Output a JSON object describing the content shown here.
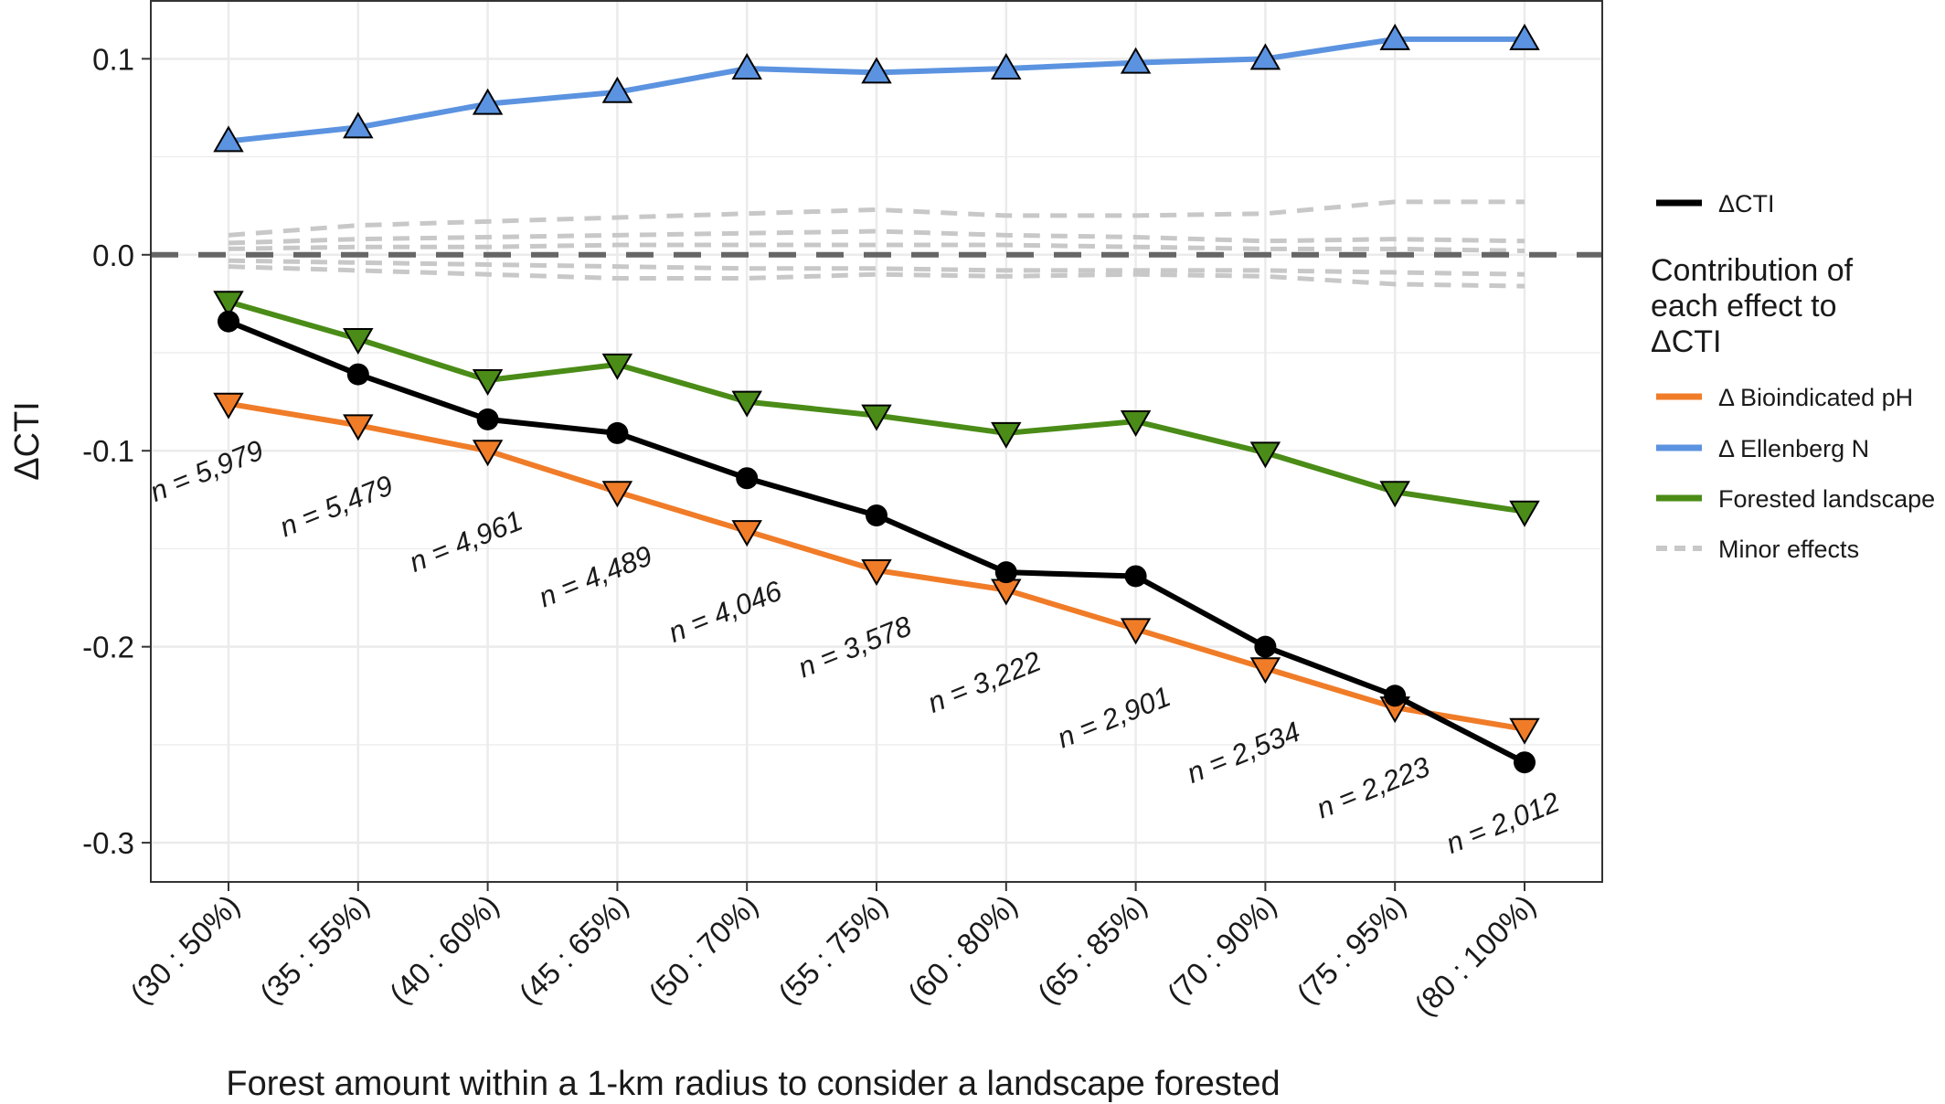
{
  "chart_data": {
    "type": "line",
    "xlabel": "Forest amount within a 1-km radius to consider a landscape forested",
    "ylabel": "ΔCTI",
    "ylim": [
      -0.32,
      0.13
    ],
    "yticks": [
      -0.3,
      -0.2,
      -0.1,
      0.0,
      0.1
    ],
    "ytick_labels": [
      "-0.3",
      "-0.2",
      "-0.1",
      "0.0",
      "0.1"
    ],
    "grid": true,
    "legend_position": "right",
    "categories": [
      "(30 : 50%)",
      "(35 : 55%)",
      "(40 : 60%)",
      "(45 : 65%)",
      "(50 : 70%)",
      "(55 : 75%)",
      "(60 : 80%)",
      "(65 : 85%)",
      "(70 : 90%)",
      "(75 : 95%)",
      "(80 : 100%)"
    ],
    "sample_sizes": [
      "n = 5,979",
      "n = 5,479",
      "n = 4,961",
      "n = 4,489",
      "n = 4,046",
      "n = 3,578",
      "n = 3,222",
      "n = 2,901",
      "n = 2,534",
      "n = 2,223",
      "n = 2,012"
    ],
    "reference_line": {
      "y": 0.0,
      "style": "dashed",
      "color": "#666666"
    },
    "series": [
      {
        "key": "cti",
        "name": "ΔCTI",
        "color": "#000000",
        "marker": "circle",
        "values": [
          -0.034,
          -0.061,
          -0.084,
          -0.091,
          -0.114,
          -0.133,
          -0.162,
          -0.164,
          -0.2,
          -0.225,
          -0.259
        ]
      },
      {
        "key": "ph",
        "name": "Δ Bioindicated pH",
        "color": "#f07c28",
        "marker": "triangle-down",
        "values": [
          -0.076,
          -0.087,
          -0.1,
          -0.121,
          -0.141,
          -0.161,
          -0.171,
          -0.191,
          -0.211,
          -0.231,
          -0.242
        ]
      },
      {
        "key": "n",
        "name": "Δ Ellenberg N",
        "color": "#5b93e0",
        "marker": "triangle-up",
        "values": [
          0.058,
          0.065,
          0.077,
          0.083,
          0.095,
          0.093,
          0.095,
          0.098,
          0.1,
          0.11,
          0.11
        ]
      },
      {
        "key": "forest",
        "name": "Forested landscape",
        "color": "#4a8c17",
        "marker": "triangle-down",
        "values": [
          -0.024,
          -0.043,
          -0.064,
          -0.056,
          -0.075,
          -0.082,
          -0.091,
          -0.085,
          -0.101,
          -0.121,
          -0.131
        ]
      }
    ],
    "minor_effects": {
      "name": "Minor effects",
      "color": "#c8c8c8",
      "lines": [
        [
          0.01,
          0.015,
          0.017,
          0.019,
          0.021,
          0.023,
          0.02,
          0.02,
          0.021,
          0.027,
          0.027
        ],
        [
          0.006,
          0.008,
          0.009,
          0.01,
          0.011,
          0.012,
          0.01,
          0.009,
          0.007,
          0.008,
          0.007
        ],
        [
          0.003,
          0.004,
          0.004,
          0.005,
          0.005,
          0.005,
          0.005,
          0.004,
          0.003,
          0.003,
          0.002
        ],
        [
          -0.003,
          -0.004,
          -0.005,
          -0.006,
          -0.007,
          -0.007,
          -0.008,
          -0.008,
          -0.008,
          -0.009,
          -0.01
        ],
        [
          -0.006,
          -0.008,
          -0.01,
          -0.012,
          -0.012,
          -0.01,
          -0.011,
          -0.01,
          -0.011,
          -0.015,
          -0.016
        ]
      ]
    },
    "legend": {
      "cti_label": "ΔCTI",
      "title_lines": [
        "Contribution of",
        "each effect to",
        "ΔCTI"
      ],
      "items": [
        "Δ Bioindicated pH",
        "Δ Ellenberg N",
        "Forested landscape",
        "Minor effects"
      ]
    }
  }
}
